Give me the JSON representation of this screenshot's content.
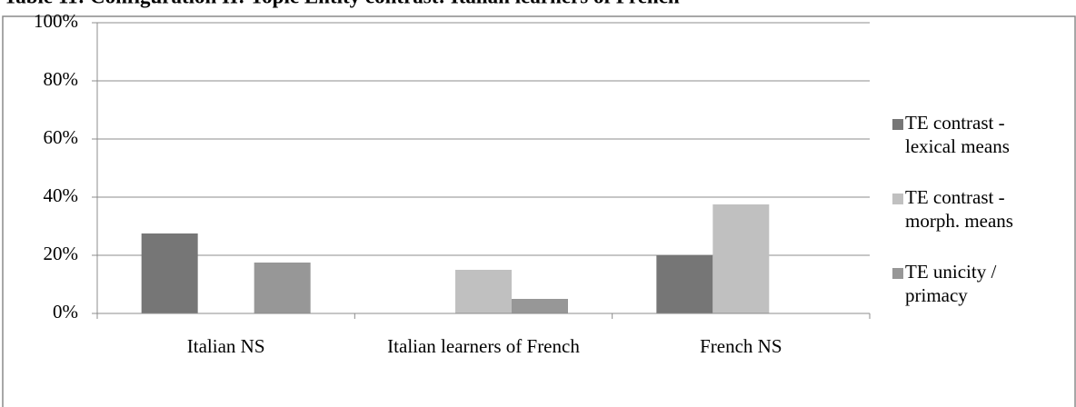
{
  "chart_data": {
    "type": "bar",
    "title": "Table 11: Configuration II: Topic Entity contrast: Italian learners of French",
    "categories": [
      "Italian NS",
      "Italian learners of French",
      "French NS"
    ],
    "series": [
      {
        "name": "TE contrast - lexical means",
        "color": "#767676",
        "values": [
          27.5,
          0,
          20
        ]
      },
      {
        "name": "TE contrast - morph. means",
        "color": "#c0c0c0",
        "values": [
          0,
          15,
          37.5
        ]
      },
      {
        "name": "TE unicity / primacy",
        "color": "#979797",
        "values": [
          17.5,
          5,
          0
        ]
      }
    ],
    "ylim": [
      0,
      100
    ],
    "yticks": [
      {
        "value": 0,
        "label": "0%"
      },
      {
        "value": 20,
        "label": "20%"
      },
      {
        "value": 40,
        "label": "40%"
      },
      {
        "value": 60,
        "label": "60%"
      },
      {
        "value": 80,
        "label": "80%"
      },
      {
        "value": 100,
        "label": "100%"
      }
    ],
    "grid": true,
    "legend": "right"
  }
}
